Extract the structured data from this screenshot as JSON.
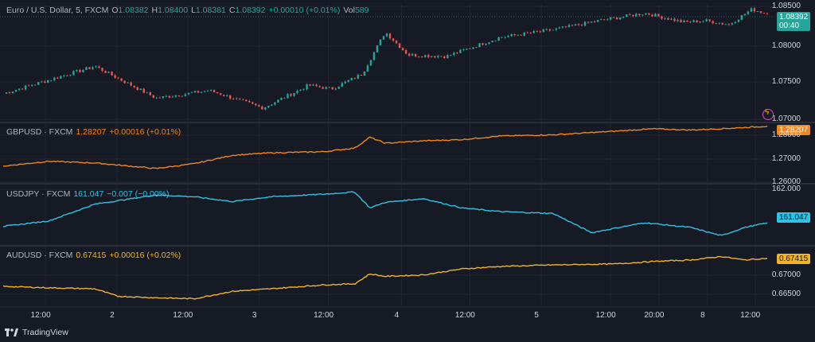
{
  "platform": "TradingView",
  "colors": {
    "background": "#161a25",
    "grid": "#222631",
    "separator": "#2a2e39",
    "eur_up": "#26a69a",
    "eur_down": "#ef5350",
    "gbp": "#f0861e",
    "jpy": "#2ec4e6",
    "aud": "#f0b429"
  },
  "main_legend": {
    "symbol": "Euro / U.S. Dollar, 5, FXCM",
    "o_label": "O",
    "o_value": "1.08382",
    "h_label": "H",
    "h_value": "1.08400",
    "l_label": "L",
    "l_value": "1.08381",
    "c_label": "C",
    "c_value": "1.08392",
    "change": "+0.00010 (+0.01%)",
    "vol_label": "Vol",
    "vol_value": "589"
  },
  "main_price_tag": {
    "price": "1.08392",
    "countdown": "00:40"
  },
  "panes": {
    "gbp": {
      "symbol": "GBPUSD · FXCM",
      "last": "1.28207",
      "change": "+0.00016 (+0.01%)",
      "tag": "1.28207"
    },
    "jpy": {
      "symbol": "USDJPY · FXCM",
      "last": "161.047",
      "change": "−0.007 (−0.00%)",
      "tag": "161.047"
    },
    "aud": {
      "symbol": "AUDUSD · FXCM",
      "last": "0.67415",
      "change": "+0.00016 (+0.02%)",
      "tag": "0.67415"
    }
  },
  "chart_data": [
    {
      "type": "candlestick",
      "title": "Euro / U.S. Dollar, 5, FXCM",
      "ylim": [
        1.0697,
        1.0853
      ],
      "yticks": [
        "1.08500",
        "1.08000",
        "1.07500",
        "1.07000"
      ],
      "x_positions": [
        0,
        0.12,
        0.2,
        0.27,
        0.34,
        0.4,
        0.43,
        0.47,
        0.5,
        0.53,
        0.58,
        0.65,
        0.72,
        0.78,
        0.84,
        0.89,
        0.92,
        0.95,
        0.98,
        1.0
      ],
      "values": [
        1.0734,
        1.077,
        1.0728,
        1.0738,
        1.0715,
        1.0745,
        1.074,
        1.076,
        1.0815,
        1.0785,
        1.0783,
        1.0808,
        1.0818,
        1.083,
        1.084,
        1.0828,
        1.083,
        1.0825,
        1.0845,
        1.08392
      ]
    },
    {
      "type": "line",
      "title": "GBPUSD · FXCM",
      "ylim": [
        1.2585,
        1.2833
      ],
      "yticks": [
        "1.28000",
        "1.27000",
        "1.26000"
      ],
      "x_positions": [
        0,
        0.06,
        0.12,
        0.2,
        0.25,
        0.3,
        0.35,
        0.42,
        0.46,
        0.48,
        0.5,
        0.55,
        0.6,
        0.65,
        0.72,
        0.8,
        0.85,
        0.9,
        0.95,
        1.0
      ],
      "values": [
        1.2655,
        1.2675,
        1.2668,
        1.2645,
        1.2665,
        1.27,
        1.271,
        1.2715,
        1.273,
        1.2775,
        1.275,
        1.276,
        1.2765,
        1.278,
        1.2785,
        1.28,
        1.281,
        1.2805,
        1.2812,
        1.28207
      ]
    },
    {
      "type": "line",
      "title": "USDJPY · FXCM",
      "ylim": [
        160.45,
        162.08
      ],
      "yticks": [
        "162.000"
      ],
      "x_positions": [
        0,
        0.06,
        0.12,
        0.2,
        0.25,
        0.3,
        0.35,
        0.42,
        0.46,
        0.48,
        0.5,
        0.55,
        0.6,
        0.65,
        0.72,
        0.77,
        0.8,
        0.84,
        0.9,
        0.94,
        0.97,
        1.0
      ],
      "values": [
        160.95,
        161.1,
        161.55,
        161.8,
        161.75,
        161.62,
        161.75,
        161.82,
        161.88,
        161.45,
        161.6,
        161.7,
        161.45,
        161.35,
        161.3,
        160.78,
        160.9,
        161.05,
        160.92,
        160.7,
        160.92,
        161.047
      ]
    },
    {
      "type": "line",
      "title": "AUDUSD · FXCM",
      "ylim": [
        0.6645,
        0.6765
      ],
      "yticks": [
        "0.67000",
        "0.66500"
      ],
      "x_positions": [
        0,
        0.06,
        0.12,
        0.15,
        0.2,
        0.25,
        0.3,
        0.35,
        0.42,
        0.46,
        0.48,
        0.5,
        0.55,
        0.6,
        0.65,
        0.72,
        0.8,
        0.85,
        0.9,
        0.94,
        0.97,
        1.0
      ],
      "values": [
        0.6685,
        0.6682,
        0.668,
        0.6665,
        0.6662,
        0.666,
        0.6675,
        0.668,
        0.6688,
        0.669,
        0.671,
        0.6705,
        0.6708,
        0.672,
        0.6725,
        0.6728,
        0.673,
        0.6735,
        0.6738,
        0.6745,
        0.6738,
        0.67415
      ]
    }
  ],
  "x_axis": {
    "labels": [
      {
        "text": "12:00",
        "pos": 0.055
      },
      {
        "text": "2",
        "pos": 0.148
      },
      {
        "text": "12:00",
        "pos": 0.24
      },
      {
        "text": "3",
        "pos": 0.333
      },
      {
        "text": "12:00",
        "pos": 0.423
      },
      {
        "text": "4",
        "pos": 0.518
      },
      {
        "text": "12:00",
        "pos": 0.607
      },
      {
        "text": "5",
        "pos": 0.7
      },
      {
        "text": "12:00",
        "pos": 0.79
      },
      {
        "text": "20:00",
        "pos": 0.853
      },
      {
        "text": "8",
        "pos": 0.916
      },
      {
        "text": "12:00",
        "pos": 0.978
      }
    ]
  },
  "brand_label": "TradingView"
}
